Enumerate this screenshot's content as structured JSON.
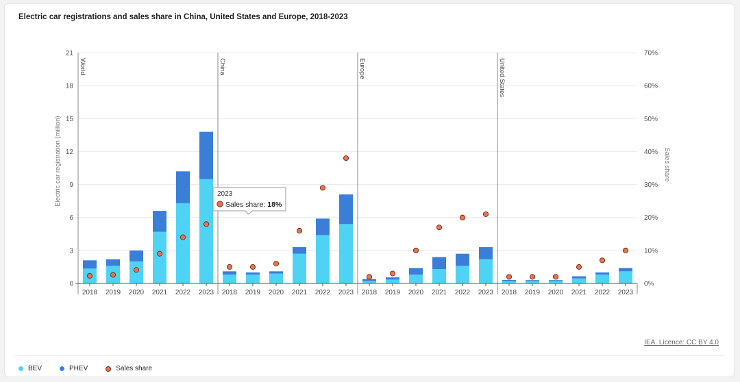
{
  "title": "Electric car registrations and sales share in China, United States and Europe, 2018-2023",
  "credit": "IEA. Licence: CC BY 4.0",
  "colors": {
    "bev": "#4fd3f5",
    "phev": "#3a7ed8",
    "share": "#ea7351",
    "share_stroke": "#6b2a14",
    "grid": "#e8e8e8",
    "axis": "#555555"
  },
  "legend": [
    {
      "label": "BEV",
      "color": "#4fd3f5"
    },
    {
      "label": "PHEV",
      "color": "#3a7ed8"
    },
    {
      "label": "Sales share",
      "color": "#ea7351"
    }
  ],
  "tooltip": {
    "year": "2023",
    "label": "Sales share: ",
    "value": "18%"
  },
  "chart_data": {
    "type": "bar",
    "stacked": true,
    "title": "Electric car registrations and sales share in China, United States and Europe, 2018-2023",
    "ylabel": "Electric car registration (million)",
    "y2label": "Sales share",
    "ylim": [
      0,
      21
    ],
    "y2lim": [
      0,
      70
    ],
    "yticks": [
      "0",
      "3",
      "6",
      "9",
      "12",
      "15",
      "18",
      "21"
    ],
    "y2ticks": [
      "0%",
      "10%",
      "20%",
      "30%",
      "40%",
      "50%",
      "60%",
      "70%"
    ],
    "years": [
      "2018",
      "2019",
      "2020",
      "2021",
      "2022",
      "2023"
    ],
    "panels": [
      {
        "name": "World",
        "bev": [
          1.35,
          1.6,
          2.0,
          4.7,
          7.3,
          9.5
        ],
        "phev": [
          0.75,
          0.6,
          1.0,
          1.9,
          2.9,
          4.3
        ],
        "share": [
          2.3,
          2.6,
          4.1,
          9.0,
          14.0,
          18.0
        ]
      },
      {
        "name": "China",
        "bev": [
          0.8,
          0.8,
          0.9,
          2.7,
          4.4,
          5.4
        ],
        "phev": [
          0.3,
          0.2,
          0.2,
          0.6,
          1.5,
          2.7
        ],
        "share": [
          5.0,
          5.0,
          6.0,
          16.0,
          29.0,
          38.0
        ]
      },
      {
        "name": "Europe",
        "bev": [
          0.2,
          0.35,
          0.8,
          1.3,
          1.6,
          2.2
        ],
        "phev": [
          0.2,
          0.2,
          0.6,
          1.1,
          1.1,
          1.1
        ],
        "share": [
          2.0,
          3.0,
          10.0,
          17.0,
          20.0,
          21.0
        ]
      },
      {
        "name": "United States",
        "bev": [
          0.2,
          0.2,
          0.2,
          0.45,
          0.8,
          1.1
        ],
        "phev": [
          0.12,
          0.1,
          0.1,
          0.2,
          0.2,
          0.3
        ],
        "share": [
          2.0,
          2.0,
          2.0,
          5.0,
          7.0,
          10.0
        ]
      }
    ]
  }
}
